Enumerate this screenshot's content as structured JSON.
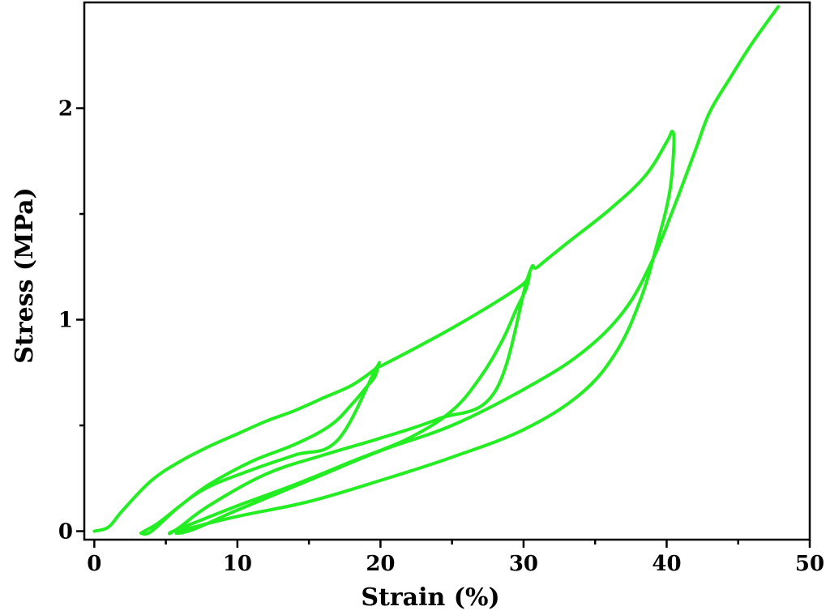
{
  "chart_data": {
    "type": "line",
    "title": "",
    "xlabel": "Strain (%)",
    "ylabel": "Stress (MPa)",
    "xlim": [
      -0.7,
      50
    ],
    "ylim": [
      -0.04,
      2.5
    ],
    "x_ticks": [
      "0",
      "10",
      "20",
      "30",
      "40",
      "50"
    ],
    "y_ticks": [
      "0",
      "1",
      "2"
    ],
    "x_tick_values": [
      0,
      10,
      20,
      30,
      40,
      50
    ],
    "y_tick_values": [
      0,
      1,
      2
    ],
    "x_minor_ticks": [
      5,
      15,
      25,
      35,
      45
    ],
    "y_minor_ticks": [
      0.5,
      1.5
    ],
    "grid": false,
    "legend": "none",
    "series": [
      {
        "color": "#22ee22",
        "points": [
          [
            0,
            0.0
          ],
          [
            1,
            0.02
          ],
          [
            2,
            0.1
          ],
          [
            4,
            0.24
          ],
          [
            6,
            0.33
          ],
          [
            8,
            0.4
          ],
          [
            10,
            0.46
          ],
          [
            12,
            0.52
          ],
          [
            14,
            0.57
          ],
          [
            16,
            0.63
          ],
          [
            18,
            0.69
          ],
          [
            19.5,
            0.76
          ],
          [
            19.8,
            0.78
          ],
          [
            19.6,
            0.73
          ],
          [
            19,
            0.68
          ],
          [
            18,
            0.6
          ],
          [
            16.5,
            0.5
          ],
          [
            14,
            0.41
          ],
          [
            11,
            0.33
          ],
          [
            8,
            0.22
          ],
          [
            6,
            0.12
          ],
          [
            4.5,
            0.04
          ],
          [
            3.5,
            0.0
          ],
          [
            3.3,
            -0.01
          ],
          [
            4,
            0.0
          ],
          [
            6,
            0.12
          ],
          [
            8,
            0.21
          ],
          [
            11,
            0.29
          ],
          [
            14,
            0.36
          ],
          [
            17,
            0.43
          ],
          [
            19.7,
            0.77
          ],
          [
            20,
            0.78
          ],
          [
            22,
            0.85
          ],
          [
            25,
            0.96
          ],
          [
            28,
            1.08
          ],
          [
            30,
            1.17
          ],
          [
            30.4,
            1.22
          ],
          [
            30.2,
            1.15
          ],
          [
            29.5,
            1.05
          ],
          [
            28.5,
            0.9
          ],
          [
            27,
            0.73
          ],
          [
            25,
            0.57
          ],
          [
            22,
            0.44
          ],
          [
            18,
            0.33
          ],
          [
            14,
            0.22
          ],
          [
            10,
            0.12
          ],
          [
            7,
            0.04
          ],
          [
            5.5,
            0.0
          ],
          [
            5.3,
            -0.01
          ],
          [
            6,
            0.02
          ],
          [
            8,
            0.12
          ],
          [
            12,
            0.27
          ],
          [
            16,
            0.36
          ],
          [
            20,
            0.44
          ],
          [
            24,
            0.53
          ],
          [
            28,
            0.66
          ],
          [
            30.3,
            1.2
          ],
          [
            31,
            1.25
          ],
          [
            33,
            1.36
          ],
          [
            36,
            1.52
          ],
          [
            38.5,
            1.68
          ],
          [
            40,
            1.84
          ],
          [
            40.4,
            1.89
          ],
          [
            40.5,
            1.82
          ],
          [
            40.2,
            1.6
          ],
          [
            39.3,
            1.35
          ],
          [
            38.2,
            1.1
          ],
          [
            36.5,
            0.85
          ],
          [
            34,
            0.65
          ],
          [
            30,
            0.48
          ],
          [
            25,
            0.35
          ],
          [
            20,
            0.24
          ],
          [
            15,
            0.14
          ],
          [
            10,
            0.07
          ],
          [
            7,
            0.02
          ],
          [
            6,
            0.0
          ],
          [
            5.8,
            -0.01
          ],
          [
            7,
            0.01
          ],
          [
            10,
            0.1
          ],
          [
            15,
            0.24
          ],
          [
            20,
            0.38
          ],
          [
            25,
            0.5
          ],
          [
            30,
            0.67
          ],
          [
            34,
            0.84
          ],
          [
            37,
            1.04
          ],
          [
            39,
            1.28
          ],
          [
            40.5,
            1.53
          ],
          [
            42,
            1.8
          ],
          [
            43,
            1.98
          ],
          [
            44.5,
            2.15
          ],
          [
            46,
            2.31
          ],
          [
            47.8,
            2.48
          ]
        ]
      }
    ]
  }
}
